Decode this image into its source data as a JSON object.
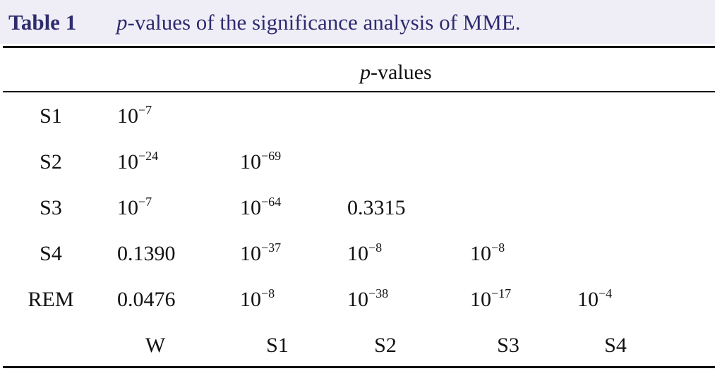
{
  "caption": {
    "label": "Table 1",
    "italic": "p",
    "text": "-values of the significance analysis of MME."
  },
  "table": {
    "header": {
      "italic": "p",
      "text": "-values"
    },
    "rows": [
      {
        "label": "S1",
        "cells": [
          {
            "base": "10",
            "exp": "−7"
          }
        ]
      },
      {
        "label": "S2",
        "cells": [
          {
            "base": "10",
            "exp": "−24"
          },
          {
            "base": "10",
            "exp": "−69"
          }
        ]
      },
      {
        "label": "S3",
        "cells": [
          {
            "base": "10",
            "exp": "−7"
          },
          {
            "base": "10",
            "exp": "−64"
          },
          "0.3315"
        ]
      },
      {
        "label": "S4",
        "cells": [
          "0.1390",
          {
            "base": "10",
            "exp": "−37"
          },
          {
            "base": "10",
            "exp": "−8"
          },
          {
            "base": "10",
            "exp": "−8"
          }
        ]
      },
      {
        "label": "REM",
        "cells": [
          "0.0476",
          {
            "base": "10",
            "exp": "−8"
          },
          {
            "base": "10",
            "exp": "−38"
          },
          {
            "base": "10",
            "exp": "−17"
          },
          {
            "base": "10",
            "exp": "−4"
          }
        ]
      }
    ],
    "columns": [
      "W",
      "S1",
      "S2",
      "S3",
      "S4"
    ]
  }
}
